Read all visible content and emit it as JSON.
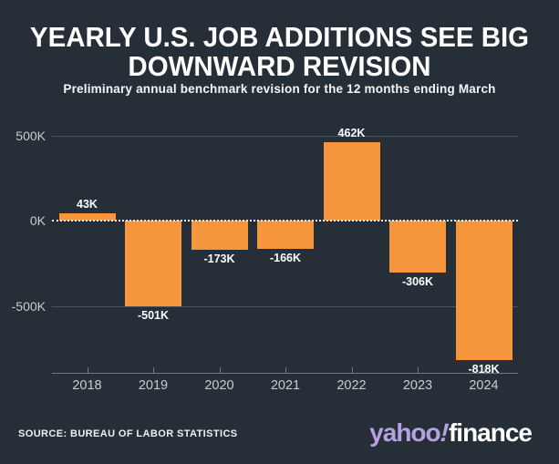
{
  "title": {
    "line1": "YEARLY U.S. JOB ADDITIONS SEE BIG",
    "line2": "DOWNWARD REVISION"
  },
  "subtitle": "Preliminary annual benchmark revision for the 12 months ending March",
  "source": "SOURCE: BUREAU OF LABOR STATISTICS",
  "logo": {
    "yahoo": "yahoo",
    "bang": "!",
    "finance": "finance"
  },
  "colors": {
    "background": "#262e38",
    "bar": "#f5953e",
    "gridline": "#4a5260",
    "zero_line": "#ffffff",
    "axis": "#6f7884",
    "tick_label": "#c8ccd2",
    "logo_purple": "#b6a2e0"
  },
  "chart_data": {
    "type": "bar",
    "title": "YEARLY U.S. JOB ADDITIONS SEE BIG DOWNWARD REVISION",
    "subtitle": "Preliminary annual benchmark revision for the 12 months ending March",
    "categories": [
      "2018",
      "2019",
      "2020",
      "2021",
      "2022",
      "2023",
      "2024"
    ],
    "values": [
      43,
      -501,
      -173,
      -166,
      462,
      -306,
      -818
    ],
    "value_labels": [
      "43K",
      "-501K",
      "-173K",
      "-166K",
      "462K",
      "-306K",
      "-818K"
    ],
    "unit": "thousands of jobs (K)",
    "xlabel": "",
    "ylabel": "",
    "ylim": [
      -900,
      560
    ],
    "y_ticks": [
      {
        "value": 500,
        "label": "500K"
      },
      {
        "value": 0,
        "label": "0K"
      },
      {
        "value": -500,
        "label": "-500K"
      }
    ],
    "legend": "none",
    "grid": "solid horizontal lines at 500K and -500K, white dotted line at 0K",
    "bar_color": "#f5953e"
  }
}
